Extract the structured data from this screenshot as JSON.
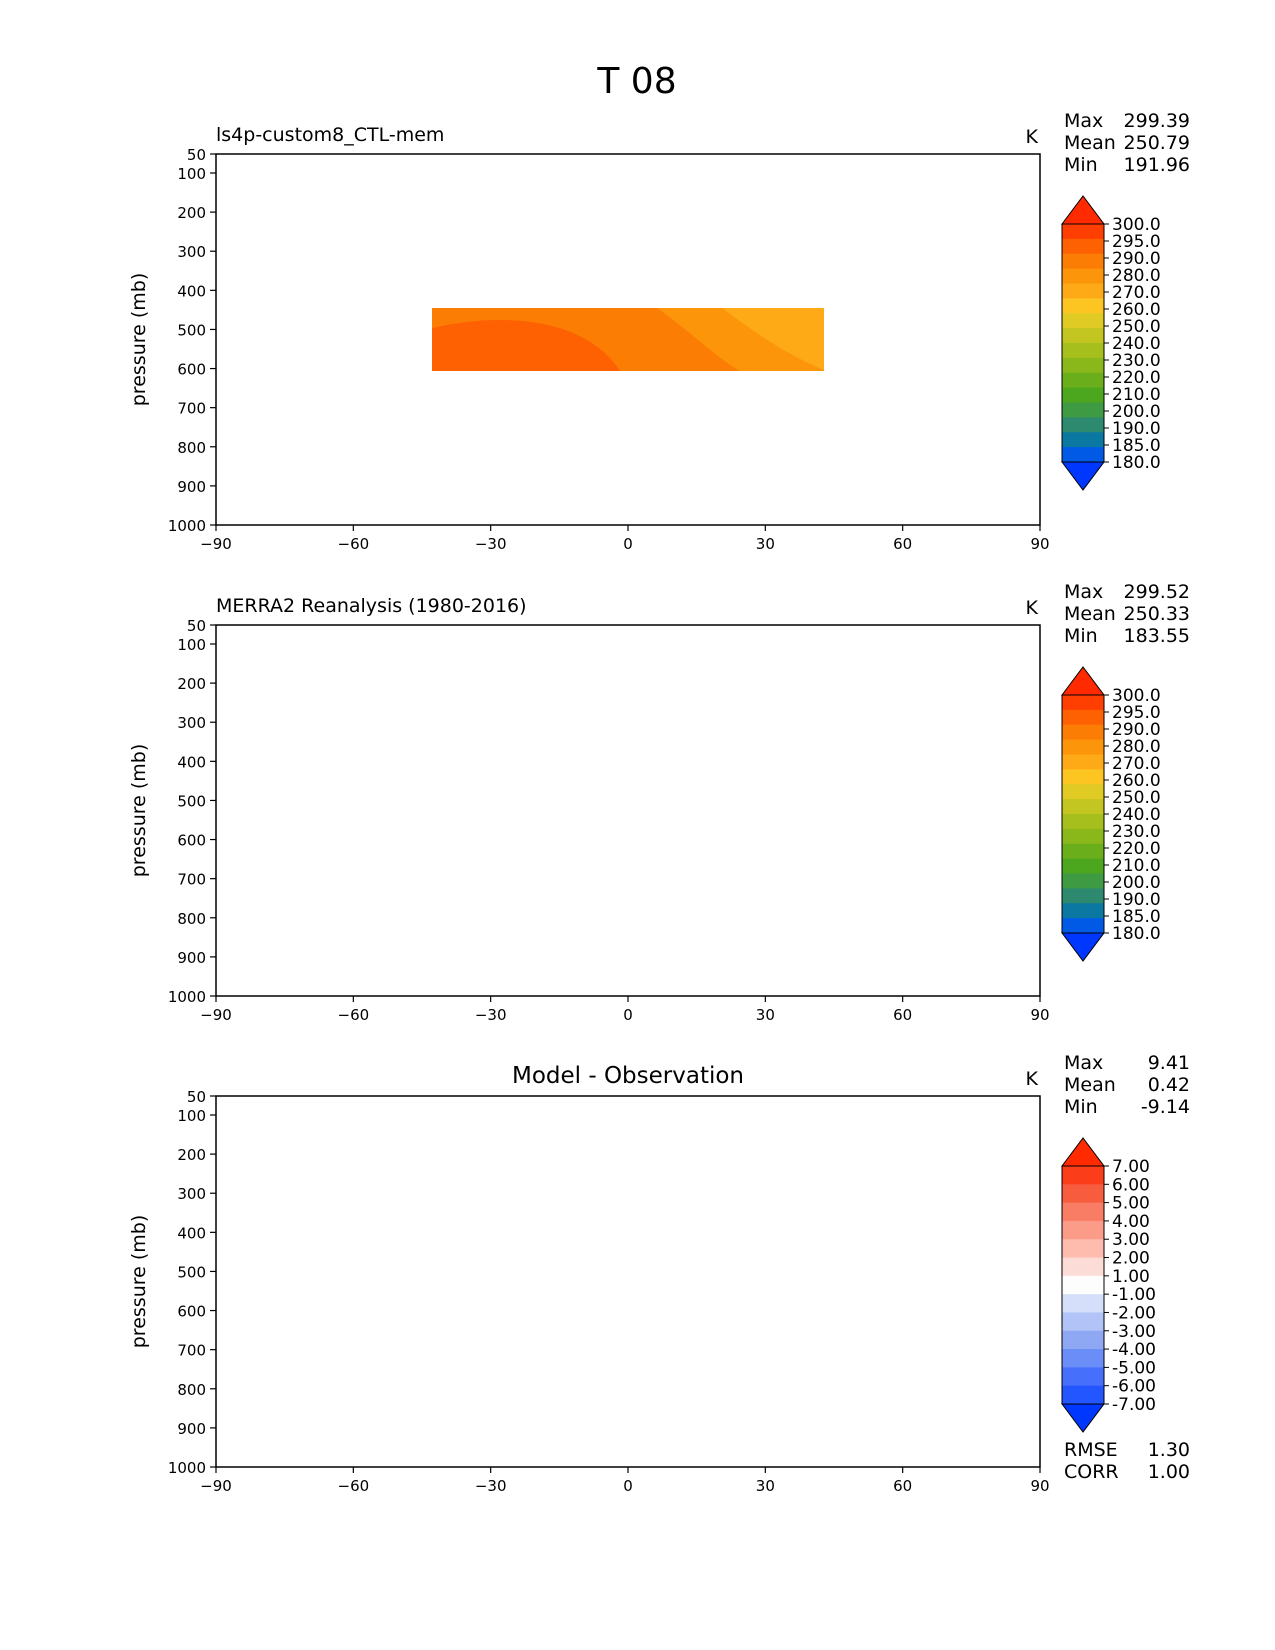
{
  "figure": {
    "title": "T 08"
  },
  "colors": {
    "abs": [
      "#0037ff",
      "#005ae6",
      "#0a78a0",
      "#2e8a6e",
      "#3f9a44",
      "#4ca61e",
      "#6aae1b",
      "#8ab81b",
      "#a7bf1d",
      "#c3c620",
      "#e0cb25",
      "#fcc521",
      "#fdaa16",
      "#fd950b",
      "#fc7d04",
      "#fe6102",
      "#ff3f01",
      "#ff2a00"
    ],
    "diff": [
      "#0037ff",
      "#2356ff",
      "#4670fb",
      "#6a8df7",
      "#8ea8f4",
      "#b2c3f7",
      "#d6dffa",
      "#fdfdfd",
      "#fcdcd6",
      "#fdbcae",
      "#fa9c88",
      "#f97d64",
      "#f85c3f",
      "#fb3d19",
      "#ff2a00"
    ]
  },
  "chart_data": [
    {
      "type": "contour",
      "title": "ls4p-custom8_CTL-mem",
      "units": "K",
      "xlabel": "",
      "ylabel": "pressure (mb)",
      "x_ticks": [
        -90,
        -60,
        -30,
        0,
        30,
        60,
        90
      ],
      "y_ticks": [
        50,
        100,
        200,
        300,
        400,
        500,
        600,
        700,
        800,
        900,
        1000
      ],
      "xlim": [
        -90,
        90
      ],
      "ylim": [
        1000,
        50
      ],
      "stats": [
        {
          "label": "Max",
          "value": "299.39"
        },
        {
          "label": "Mean",
          "value": "250.79"
        },
        {
          "label": "Min",
          "value": "191.96"
        }
      ],
      "colorbar_ticks": [
        "300.0",
        "295.0",
        "290.0",
        "280.0",
        "270.0",
        "260.0",
        "250.0",
        "240.0",
        "230.0",
        "220.0",
        "210.0",
        "200.0",
        "190.0",
        "185.0",
        "180.0"
      ]
    },
    {
      "type": "contour",
      "title": "MERRA2 Reanalysis (1980-2016)",
      "units": "K",
      "xlabel": "",
      "ylabel": "pressure (mb)",
      "x_ticks": [
        -90,
        -60,
        -30,
        0,
        30,
        60,
        90
      ],
      "y_ticks": [
        50,
        100,
        200,
        300,
        400,
        500,
        600,
        700,
        800,
        900,
        1000
      ],
      "xlim": [
        -90,
        90
      ],
      "ylim": [
        1000,
        50
      ],
      "stats": [
        {
          "label": "Max",
          "value": "299.52"
        },
        {
          "label": "Mean",
          "value": "250.33"
        },
        {
          "label": "Min",
          "value": "183.55"
        }
      ],
      "colorbar_ticks": [
        "300.0",
        "295.0",
        "290.0",
        "280.0",
        "270.0",
        "260.0",
        "250.0",
        "240.0",
        "230.0",
        "220.0",
        "210.0",
        "200.0",
        "190.0",
        "185.0",
        "180.0"
      ]
    },
    {
      "type": "contour",
      "title": "Model - Observation",
      "units": "K",
      "xlabel": "",
      "ylabel": "pressure (mb)",
      "x_ticks": [
        -90,
        -60,
        -30,
        0,
        30,
        60,
        90
      ],
      "y_ticks": [
        50,
        100,
        200,
        300,
        400,
        500,
        600,
        700,
        800,
        900,
        1000
      ],
      "xlim": [
        -90,
        90
      ],
      "ylim": [
        1000,
        50
      ],
      "stats": [
        {
          "label": "Max",
          "value": "9.41"
        },
        {
          "label": "Mean",
          "value": "0.42"
        },
        {
          "label": "Min",
          "value": "-9.14"
        }
      ],
      "colorbar_ticks": [
        "7.00",
        "6.00",
        "5.00",
        "4.00",
        "3.00",
        "2.00",
        "1.00",
        "-1.00",
        "-2.00",
        "-3.00",
        "-4.00",
        "-5.00",
        "-6.00",
        "-7.00"
      ],
      "extra_stats": [
        {
          "label": "RMSE",
          "value": "1.30"
        },
        {
          "label": "CORR",
          "value": "1.00"
        }
      ]
    }
  ]
}
